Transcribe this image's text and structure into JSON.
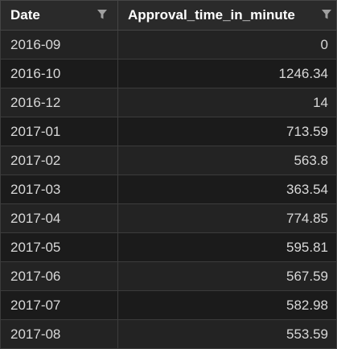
{
  "columns": [
    {
      "label": "Date",
      "filter_icon": "filter-icon"
    },
    {
      "label": "Approval_time_in_minute",
      "filter_icon": "filter-icon"
    }
  ],
  "rows": [
    {
      "date": "2016-09",
      "value": "0"
    },
    {
      "date": "2016-10",
      "value": "1246.34"
    },
    {
      "date": "2016-12",
      "value": "14"
    },
    {
      "date": "2017-01",
      "value": "713.59"
    },
    {
      "date": "2017-02",
      "value": "563.8"
    },
    {
      "date": "2017-03",
      "value": "363.54"
    },
    {
      "date": "2017-04",
      "value": "774.85"
    },
    {
      "date": "2017-05",
      "value": "595.81"
    },
    {
      "date": "2017-06",
      "value": "567.59"
    },
    {
      "date": "2017-07",
      "value": "582.98"
    },
    {
      "date": "2017-08",
      "value": "553.59"
    }
  ],
  "colors": {
    "header_bg": "#2a2a2a",
    "row_odd_bg": "#232323",
    "row_even_bg": "#1b1b1b",
    "border": "#3c3c3c",
    "text": "#d8d8d8",
    "header_text": "#ffffff",
    "filter_icon": "#a0a0a0"
  }
}
